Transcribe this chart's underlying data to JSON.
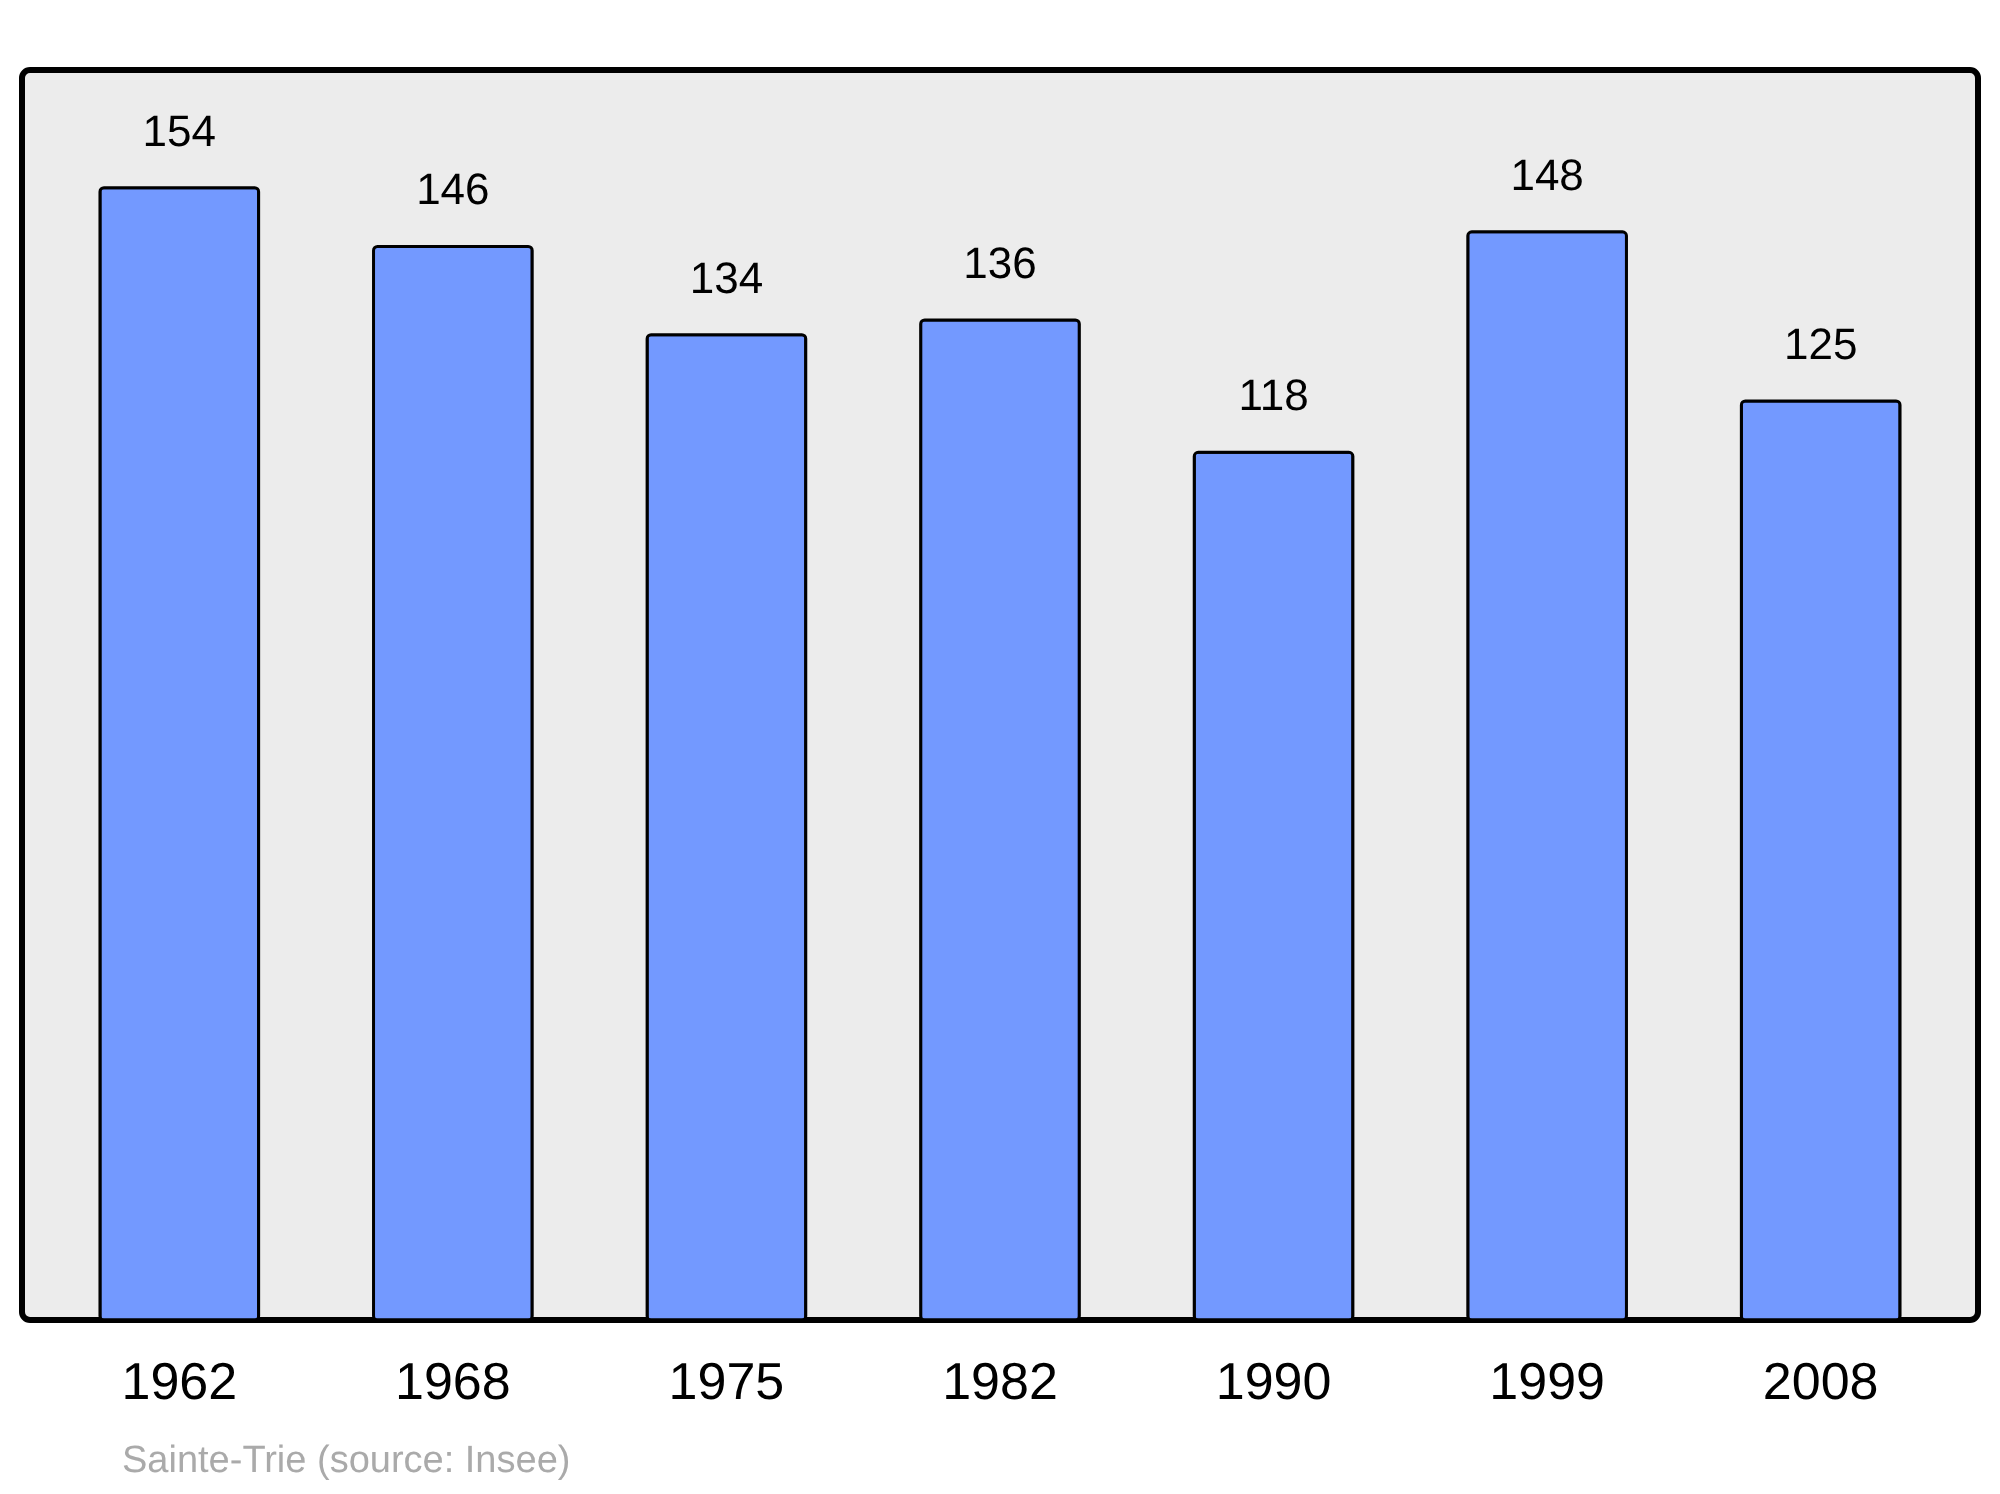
{
  "chart_data": {
    "type": "bar",
    "categories": [
      "1962",
      "1968",
      "1975",
      "1982",
      "1990",
      "1999",
      "2008"
    ],
    "values": [
      154,
      146,
      134,
      136,
      118,
      148,
      125
    ],
    "color": "#7399ff",
    "ylim": [
      0,
      170
    ],
    "data_labels": true,
    "annotations": [
      "Sainte-Trie    (source: Insee)"
    ]
  }
}
